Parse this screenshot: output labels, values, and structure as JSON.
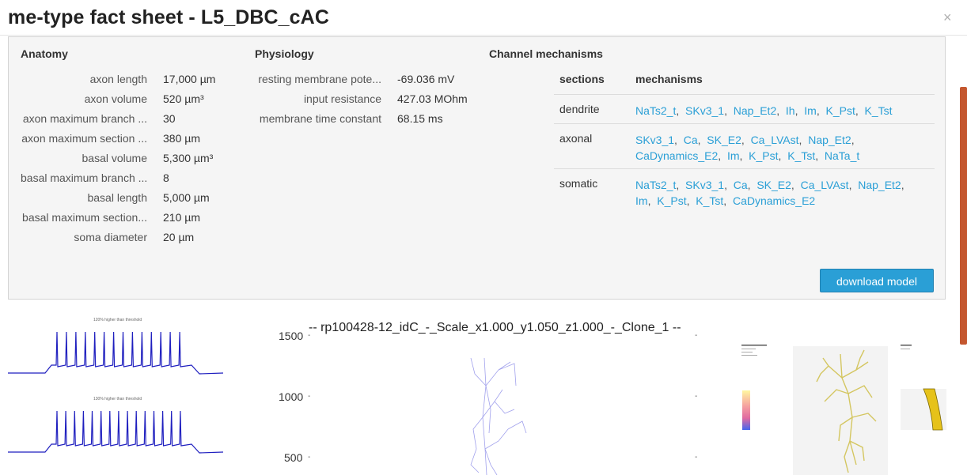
{
  "modal": {
    "title": "me-type fact sheet - L5_DBC_cAC",
    "close_glyph": "×"
  },
  "anatomy": {
    "heading": "Anatomy",
    "rows": [
      {
        "label": "axon length",
        "value": "17,000 µm"
      },
      {
        "label": "axon volume",
        "value": "520 µm³"
      },
      {
        "label": "axon maximum branch ...",
        "value": "30"
      },
      {
        "label": "axon maximum section ...",
        "value": "380 µm"
      },
      {
        "label": "basal volume",
        "value": "5,300 µm³"
      },
      {
        "label": "basal maximum branch ...",
        "value": "8"
      },
      {
        "label": "basal length",
        "value": "5,000 µm"
      },
      {
        "label": "basal maximum section...",
        "value": "210 µm"
      },
      {
        "label": "soma diameter",
        "value": "20 µm"
      }
    ]
  },
  "physiology": {
    "heading": "Physiology",
    "rows": [
      {
        "label": "resting membrane pote...",
        "value": "-69.036 mV"
      },
      {
        "label": "input resistance",
        "value": "427.03 MOhm"
      },
      {
        "label": "membrane time constant",
        "value": "68.15 ms"
      }
    ]
  },
  "channels": {
    "heading": "Channel mechanisms",
    "col_sections": "sections",
    "col_mechanisms": "mechanisms",
    "rows": [
      {
        "section": "dendrite",
        "mechanisms": [
          "NaTs2_t",
          "SKv3_1",
          "Nap_Et2",
          "Ih",
          "Im",
          "K_Pst",
          "K_Tst"
        ]
      },
      {
        "section": "axonal",
        "mechanisms": [
          "SKv3_1",
          "Ca",
          "SK_E2",
          "Ca_LVAst",
          "Nap_Et2",
          "CaDynamics_E2",
          "Im",
          "K_Pst",
          "K_Tst",
          "NaTa_t"
        ]
      },
      {
        "section": "somatic",
        "mechanisms": [
          "NaTs2_t",
          "SKv3_1",
          "Ca",
          "SK_E2",
          "Ca_LVAst",
          "Nap_Et2",
          "Im",
          "K_Pst",
          "K_Tst",
          "CaDynamics_E2"
        ]
      }
    ]
  },
  "download_button": "download model",
  "traces": {
    "top_title": "120% higher than threshold",
    "bottom_title": "130% higher than threshold",
    "top_spike_count": 14,
    "bottom_spike_count": 15
  },
  "morphology_plot": {
    "title": "-- rp100428-12_idC_-_Scale_x1.000_y1.050_z1.000_-_Clone_1 --",
    "yticks": [
      "1500",
      "1000",
      "500"
    ],
    "tick_dash": "-"
  },
  "colors": {
    "accent": "#2a9fd6",
    "trace": "#1f1fbf",
    "morph": "#7a7ae6",
    "neuron3d": "#d8c96a",
    "axon3d": "#e6c21a"
  }
}
